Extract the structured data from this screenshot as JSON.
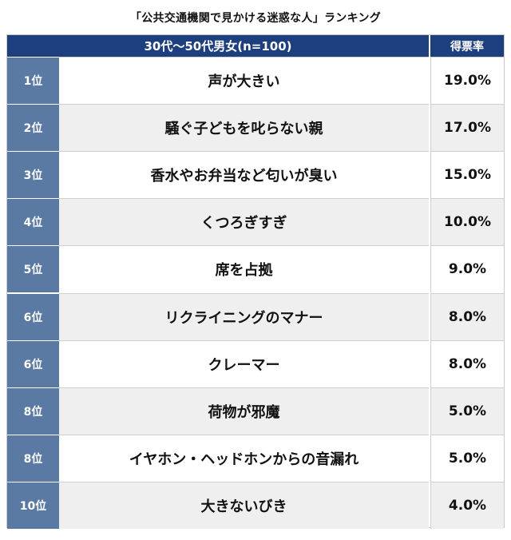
{
  "chart_data": {
    "type": "table",
    "title": "「公共交通機関で見かける迷惑な人」ランキング",
    "header": {
      "group": "30代〜50代男女(n=100)",
      "rate_label": "得票率"
    },
    "rows": [
      {
        "rank": "1位",
        "item": "声が大きい",
        "rate": "19.0%",
        "value": 19.0
      },
      {
        "rank": "2位",
        "item": "騒ぐ子どもを叱らない親",
        "rate": "17.0%",
        "value": 17.0
      },
      {
        "rank": "3位",
        "item": "香水やお弁当など匂いが臭い",
        "rate": "15.0%",
        "value": 15.0
      },
      {
        "rank": "4位",
        "item": "くつろぎすぎ",
        "rate": "10.0%",
        "value": 10.0
      },
      {
        "rank": "5位",
        "item": "席を占拠",
        "rate": "9.0%",
        "value": 9.0
      },
      {
        "rank": "6位",
        "item": "リクライニングのマナー",
        "rate": "8.0%",
        "value": 8.0
      },
      {
        "rank": "6位",
        "item": "クレーマー",
        "rate": "8.0%",
        "value": 8.0
      },
      {
        "rank": "8位",
        "item": "荷物が邪魔",
        "rate": "5.0%",
        "value": 5.0
      },
      {
        "rank": "8位",
        "item": "イヤホン・ヘッドホンからの音漏れ",
        "rate": "5.0%",
        "value": 5.0
      },
      {
        "rank": "10位",
        "item": "大きないびき",
        "rate": "4.0%",
        "value": 4.0
      }
    ]
  },
  "colors": {
    "header_bg": "#1d3f7d",
    "rank_bg": "#5b7aa3",
    "alt_row_bg": "#efefef"
  }
}
